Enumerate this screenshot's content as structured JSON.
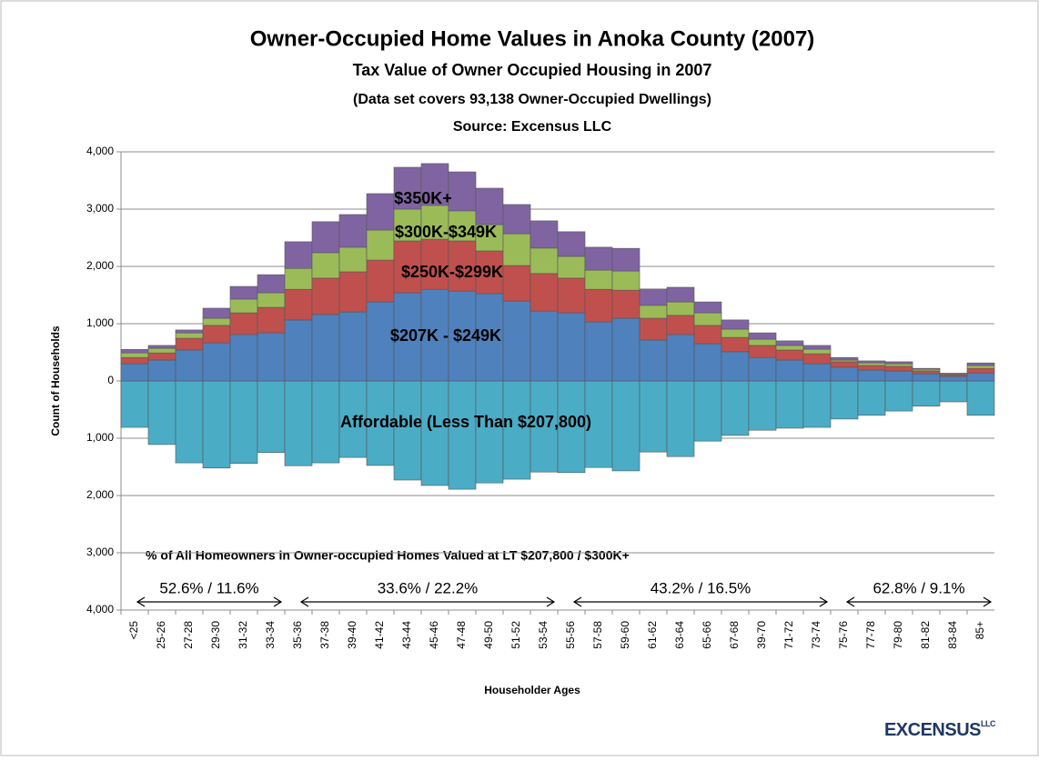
{
  "chart_data": {
    "type": "bar",
    "stacked": true,
    "title": "Owner-Occupied Home Values in Anoka County (2007)",
    "subtitle": "Tax Value of Owner Occupied Housing in 2007",
    "subtitle2": "(Data set covers 93,138 Owner-Occupied Dwellings)",
    "source": "Source: Excensus LLC",
    "y_label": "Count of Households",
    "x_label": "Householder Ages",
    "categories": [
      "<25",
      "25-26",
      "27-28",
      "29-30",
      "31-32",
      "33-34",
      "35-36",
      "37-38",
      "39-40",
      "41-42",
      "43-44",
      "45-46",
      "47-48",
      "49-50",
      "51-52",
      "53-54",
      "55-56",
      "57-58",
      "59-60",
      "61-62",
      "63-64",
      "65-66",
      "67-68",
      "39-70",
      "71-72",
      "73-74",
      "75-76",
      "77-78",
      "79-80",
      "81-82",
      "83-84",
      "85+"
    ],
    "series": [
      {
        "name": "Affordable (Less Than $207,800)",
        "color": "#4bacc6",
        "values": [
          -810,
          -1110,
          -1430,
          -1520,
          -1440,
          -1250,
          -1480,
          -1430,
          -1335,
          -1475,
          -1730,
          -1825,
          -1890,
          -1780,
          -1715,
          -1590,
          -1600,
          -1510,
          -1570,
          -1240,
          -1320,
          -1050,
          -950,
          -860,
          -825,
          -810,
          -665,
          -600,
          -525,
          -440,
          -365,
          -600
        ]
      },
      {
        "name": "$207K - $249K",
        "color": "#4f81bd",
        "values": [
          300,
          365,
          540,
          665,
          810,
          840,
          1065,
          1160,
          1205,
          1380,
          1540,
          1600,
          1570,
          1525,
          1395,
          1220,
          1190,
          1030,
          1095,
          715,
          810,
          650,
          510,
          410,
          365,
          300,
          240,
          190,
          175,
          125,
          80,
          140
        ]
      },
      {
        "name": "$250K-$299K",
        "color": "#c0504d",
        "values": [
          110,
          125,
          205,
          305,
          380,
          445,
          535,
          635,
          700,
          730,
          905,
          875,
          875,
          745,
          620,
          655,
          605,
          570,
          490,
          380,
          335,
          320,
          250,
          210,
          175,
          175,
          95,
          80,
          80,
          50,
          30,
          80
        ]
      },
      {
        "name": "$300K-$349K",
        "color": "#9bbb59",
        "values": [
          80,
          80,
          95,
          125,
          240,
          255,
          365,
          445,
          430,
          525,
          555,
          590,
          525,
          460,
          555,
          445,
          380,
          335,
          335,
          225,
          235,
          220,
          145,
          110,
          80,
          80,
          30,
          45,
          45,
          30,
          15,
          50
        ]
      },
      {
        "name": "$350K+",
        "color": "#8064a2",
        "values": [
          60,
          50,
          50,
          175,
          220,
          315,
          465,
          540,
          570,
          635,
          730,
          730,
          680,
          635,
          510,
          475,
          430,
          400,
          395,
          285,
          255,
          190,
          160,
          110,
          80,
          65,
          45,
          35,
          35,
          15,
          10,
          45
        ]
      }
    ],
    "ylim": [
      -4000,
      4000
    ],
    "yticks": [
      {
        "value": 4000,
        "label": "4,000"
      },
      {
        "value": 3000,
        "label": "3,000"
      },
      {
        "value": 2000,
        "label": "2,000"
      },
      {
        "value": 1000,
        "label": "1,000"
      },
      0,
      {
        "value": -1000,
        "label": "1,000"
      },
      {
        "value": -2000,
        "label": "2,000"
      },
      {
        "value": -3000,
        "label": "3,000"
      },
      {
        "value": -4000,
        "label": "4,000"
      }
    ],
    "grid": true,
    "note": "% of All Homeowners in Owner-occupied Homes Valued at LT $207,800 / $300K+",
    "ranges": [
      {
        "text": "52.6% / 11.6%",
        "from": "<25",
        "to": "33-34"
      },
      {
        "text": "33.6% / 22.2%",
        "from": "35-36",
        "to": "53-54"
      },
      {
        "text": "43.2% / 16.5%",
        "from": "55-56",
        "to": "73-74"
      },
      {
        "text": "62.8% / 9.1%",
        "from": "75-76",
        "to": "85+"
      }
    ],
    "logo": "EXCENSUS",
    "logo_suffix": "LLC"
  }
}
